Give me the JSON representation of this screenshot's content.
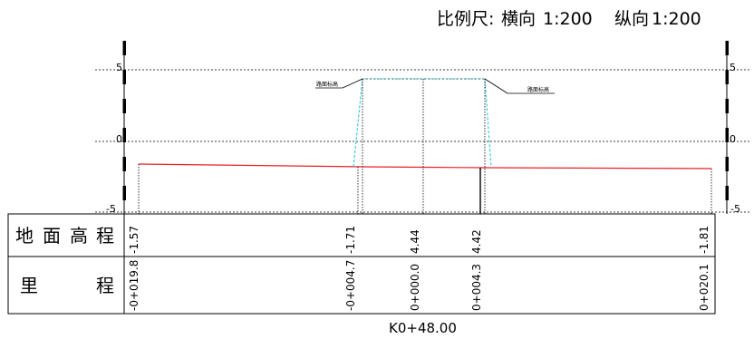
{
  "header": {
    "scale_label": "比例尺:",
    "horizontal_label": "横向",
    "horizontal_scale": "1:200",
    "vertical_label": "纵向",
    "vertical_scale": "1:200"
  },
  "axis": {
    "ticks": [
      "5",
      "0",
      "-5"
    ]
  },
  "annotations": {
    "left_tag": "路面标高",
    "right_tag": "路面标高"
  },
  "table": {
    "rows": [
      {
        "label_chars": [
          "地",
          "面",
          "高",
          "程"
        ],
        "values": [
          "-1.57",
          "-1.71",
          "4.44",
          "4.42",
          "-1.81"
        ]
      },
      {
        "label_chars": [
          "里",
          "程"
        ],
        "values": [
          "-0+019.8",
          "-0+004.7",
          "0+000.0",
          "0+004.3",
          "0+020.1"
        ]
      }
    ]
  },
  "station": "K0+48.00",
  "colors": {
    "ground_line": "#e8202a",
    "road_outline": "#22c9d6",
    "ink": "#000000"
  }
}
